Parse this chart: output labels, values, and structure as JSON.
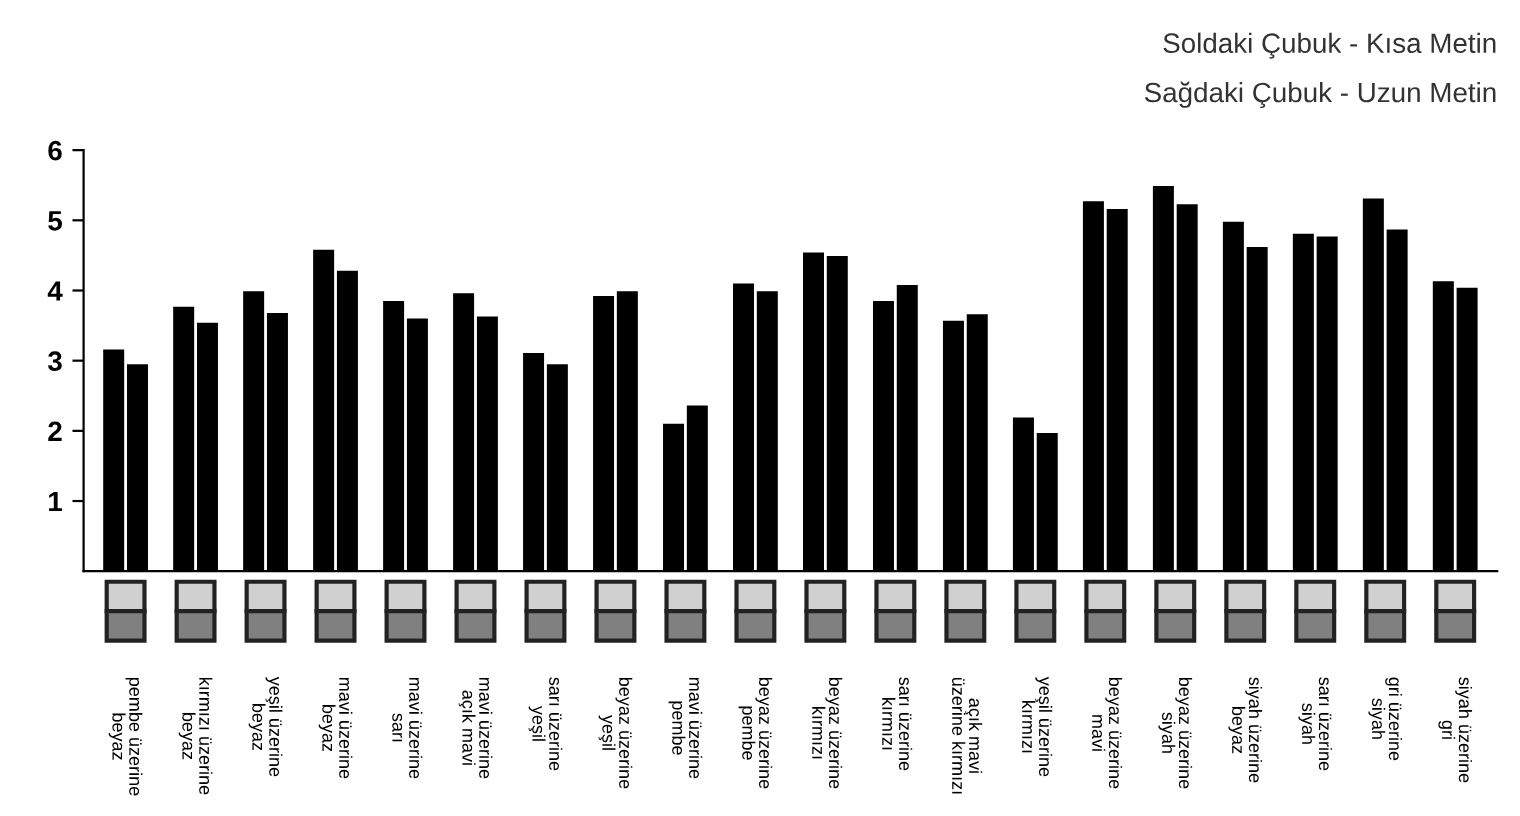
{
  "chart_data": {
    "type": "bar",
    "categories": [
      "pembe üzerine\nbeyaz",
      "kırmızı üzerine\nbeyaz",
      "yeşil üzerine\nbeyaz",
      "mavi üzerine\nbeyaz",
      "mavi üzerine\nsarı",
      "mavi üzerine\naçık mavi",
      "sarı üzerine\nyeşil",
      "beyaz üzerine\nyeşil",
      "mavi üzerine\npembe",
      "beyaz üzerine\npembe",
      "beyaz üzerine\nkırmızı",
      "sarı üzerine\nkırmızı",
      "açık mavi\nüzerine kırmızı",
      "yeşil üzerine\nkırmızı",
      "beyaz üzerine\nmavi",
      "beyaz üzerine\nsiyah",
      "siyah üzerine\nbeyaz",
      "sarı üzerine\nsiyah",
      "gri üzerine\nsiyah",
      "siyah üzerine\ngri"
    ],
    "series": [
      {
        "color": "#000000",
        "values": [
          3.16,
          3.77,
          3.99,
          4.58,
          3.85,
          3.96,
          3.11,
          3.92,
          2.1,
          4.1,
          4.54,
          3.85,
          3.57,
          2.19,
          5.27,
          5.49,
          4.98,
          4.81,
          5.31,
          4.13
        ]
      },
      {
        "color": "#000000",
        "values": [
          2.95,
          3.54,
          3.68,
          4.28,
          3.6,
          3.63,
          2.95,
          3.99,
          2.36,
          3.99,
          4.49,
          4.08,
          3.66,
          1.97,
          5.16,
          5.23,
          4.62,
          4.77,
          4.87,
          4.04
        ]
      }
    ],
    "ylim": [
      0,
      6
    ],
    "yticks": [
      1,
      2,
      3,
      4,
      5,
      6
    ],
    "grid": false,
    "legend": false,
    "annotations": [
      "Soldaki Çubuk - Kısa Metin",
      "Sağdaki Çubuk - Uzun Metin"
    ]
  }
}
